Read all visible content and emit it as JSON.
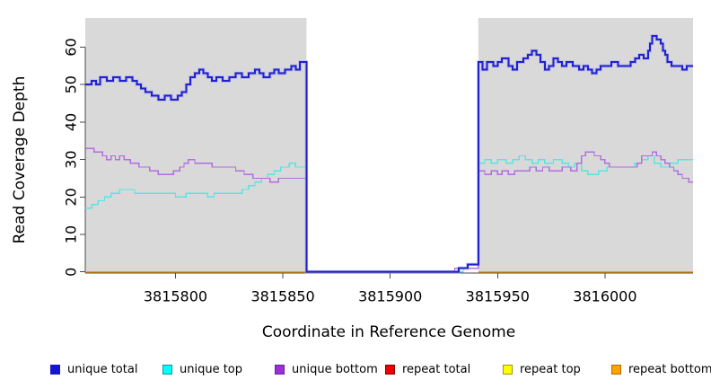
{
  "figure": {
    "title": "",
    "ylabel": "Read Coverage Depth",
    "xlabel": "Coordinate in Reference Genome"
  },
  "legend": {
    "items": [
      {
        "label": "unique total",
        "fill": "#1515ce",
        "border": "#1515ce"
      },
      {
        "label": "unique top",
        "fill": "#00ffff",
        "border": "#009c9c"
      },
      {
        "label": "unique bottom",
        "fill": "#9d2fd6",
        "border": "#6a1f93"
      },
      {
        "label": "repeat total",
        "fill": "#ee0000",
        "border": "#7e0000"
      },
      {
        "label": "repeat top",
        "fill": "#ffff00",
        "border": "#99990a"
      },
      {
        "label": "repeat bottom",
        "fill": "#ffa500",
        "border": "#b36b00"
      }
    ]
  },
  "chart_data": {
    "type": "line",
    "subtype": "step",
    "title": "",
    "xlabel": "Coordinate in Reference Genome",
    "ylabel": "Read Coverage Depth",
    "xlim": [
      3815758,
      3816041
    ],
    "ylim": [
      -0.3,
      67.8
    ],
    "xticks": [
      3815800,
      3815850,
      3815900,
      3815950,
      3816000
    ],
    "yticks": [
      0,
      10,
      20,
      30,
      40,
      50,
      60
    ],
    "grid": false,
    "legend_position": "bottom",
    "panel_bg": "#d9d9d9",
    "gap_region": {
      "start": 3815861,
      "end": 3815941,
      "color": "#ffffff"
    },
    "axis_color": "#4a4a4a",
    "series": [
      {
        "name": "repeat total",
        "key": "repeat-total",
        "color": "#e00000",
        "width": 1.3,
        "segments": [
          [
            [
              3815758,
              0
            ],
            [
              3815861,
              0
            ]
          ],
          [
            [
              3815941,
              0
            ],
            [
              3816041,
              0
            ]
          ]
        ]
      },
      {
        "name": "repeat top",
        "key": "repeat-top",
        "color": "#ffff00",
        "width": 1.3,
        "segments": [
          [
            [
              3815758,
              0
            ],
            [
              3815861,
              0
            ]
          ],
          [
            [
              3815941,
              0
            ],
            [
              3816041,
              0
            ]
          ]
        ]
      },
      {
        "name": "repeat bottom",
        "key": "repeat-bottom",
        "color": "#ff9d00",
        "width": 1.6,
        "segments": [
          [
            [
              3815758,
              0
            ],
            [
              3815861,
              0
            ]
          ],
          [
            [
              3815941,
              0
            ],
            [
              3816041,
              0
            ]
          ]
        ]
      },
      {
        "name": "unique top",
        "key": "unique-top",
        "color": "#55e6e2",
        "width": 1.4,
        "segments": [
          [
            [
              3815758,
              17
            ],
            [
              3815761,
              18
            ],
            [
              3815764,
              19
            ],
            [
              3815767,
              20
            ],
            [
              3815770,
              21
            ],
            [
              3815774,
              22
            ],
            [
              3815781,
              21
            ],
            [
              3815800,
              20
            ],
            [
              3815805,
              21
            ],
            [
              3815815,
              20
            ],
            [
              3815818,
              21
            ],
            [
              3815831,
              22
            ],
            [
              3815834,
              23
            ],
            [
              3815837,
              24
            ],
            [
              3815840,
              25
            ],
            [
              3815843,
              26
            ],
            [
              3815846,
              27
            ],
            [
              3815849,
              28
            ],
            [
              3815853,
              29
            ],
            [
              3815856,
              28
            ],
            [
              3815861,
              0
            ],
            [
              3815934,
              1
            ],
            [
              3815941,
              29
            ],
            [
              3815944,
              30
            ],
            [
              3815947,
              29
            ],
            [
              3815950,
              30
            ],
            [
              3815954,
              29
            ],
            [
              3815957,
              30
            ],
            [
              3815960,
              31
            ],
            [
              3815963,
              30
            ],
            [
              3815966,
              29
            ],
            [
              3815969,
              30
            ],
            [
              3815972,
              29
            ],
            [
              3815976,
              30
            ],
            [
              3815980,
              29
            ],
            [
              3815983,
              28
            ],
            [
              3815986,
              29
            ],
            [
              3815989,
              27
            ],
            [
              3815992,
              26
            ],
            [
              3815997,
              27
            ],
            [
              3816001,
              28
            ],
            [
              3816010,
              28
            ],
            [
              3816014,
              29
            ],
            [
              3816017,
              30
            ],
            [
              3816020,
              31
            ],
            [
              3816023,
              29
            ],
            [
              3816026,
              28
            ],
            [
              3816030,
              29
            ],
            [
              3816034,
              30
            ],
            [
              3816041,
              30
            ]
          ]
        ]
      },
      {
        "name": "unique bottom",
        "key": "unique-bottom",
        "color": "#b36ede",
        "width": 1.4,
        "segments": [
          [
            [
              3815758,
              33
            ],
            [
              3815762,
              32
            ],
            [
              3815766,
              31
            ],
            [
              3815768,
              30
            ],
            [
              3815770,
              31
            ],
            [
              3815772,
              30
            ],
            [
              3815774,
              31
            ],
            [
              3815776,
              30
            ],
            [
              3815779,
              29
            ],
            [
              3815783,
              28
            ],
            [
              3815788,
              27
            ],
            [
              3815792,
              26
            ],
            [
              3815799,
              27
            ],
            [
              3815802,
              28
            ],
            [
              3815804,
              29
            ],
            [
              3815806,
              30
            ],
            [
              3815809,
              29
            ],
            [
              3815817,
              28
            ],
            [
              3815824,
              28
            ],
            [
              3815828,
              27
            ],
            [
              3815832,
              26
            ],
            [
              3815836,
              25
            ],
            [
              3815841,
              25
            ],
            [
              3815844,
              24
            ],
            [
              3815848,
              25
            ],
            [
              3815861,
              0
            ],
            [
              3815930,
              1
            ],
            [
              3815941,
              27
            ],
            [
              3815944,
              26
            ],
            [
              3815947,
              27
            ],
            [
              3815950,
              26
            ],
            [
              3815952,
              27
            ],
            [
              3815955,
              26
            ],
            [
              3815958,
              27
            ],
            [
              3815962,
              27
            ],
            [
              3815965,
              28
            ],
            [
              3815968,
              27
            ],
            [
              3815971,
              28
            ],
            [
              3815974,
              27
            ],
            [
              3815980,
              28
            ],
            [
              3815984,
              27
            ],
            [
              3815987,
              29
            ],
            [
              3815989,
              31
            ],
            [
              3815991,
              32
            ],
            [
              3815995,
              31
            ],
            [
              3815998,
              30
            ],
            [
              3816000,
              29
            ],
            [
              3816002,
              28
            ],
            [
              3816012,
              28
            ],
            [
              3816015,
              29
            ],
            [
              3816017,
              31
            ],
            [
              3816020,
              31
            ],
            [
              3816022,
              32
            ],
            [
              3816024,
              31
            ],
            [
              3816026,
              30
            ],
            [
              3816028,
              29
            ],
            [
              3816030,
              28
            ],
            [
              3816032,
              27
            ],
            [
              3816034,
              26
            ],
            [
              3816036,
              25
            ],
            [
              3816039,
              24
            ],
            [
              3816041,
              24
            ]
          ]
        ]
      },
      {
        "name": "unique total",
        "key": "unique-total",
        "color": "#2121cd",
        "width": 2,
        "halo": "#9b9bf0",
        "segments": [
          [
            [
              3815758,
              50
            ],
            [
              3815761,
              51
            ],
            [
              3815763,
              50
            ],
            [
              3815765,
              52
            ],
            [
              3815768,
              51
            ],
            [
              3815771,
              52
            ],
            [
              3815774,
              51
            ],
            [
              3815777,
              52
            ],
            [
              3815780,
              51
            ],
            [
              3815782,
              50
            ],
            [
              3815784,
              49
            ],
            [
              3815786,
              48
            ],
            [
              3815789,
              47
            ],
            [
              3815792,
              46
            ],
            [
              3815795,
              47
            ],
            [
              3815798,
              46
            ],
            [
              3815801,
              47
            ],
            [
              3815803,
              48
            ],
            [
              3815805,
              50
            ],
            [
              3815807,
              52
            ],
            [
              3815809,
              53
            ],
            [
              3815811,
              54
            ],
            [
              3815813,
              53
            ],
            [
              3815815,
              52
            ],
            [
              3815817,
              51
            ],
            [
              3815819,
              52
            ],
            [
              3815822,
              51
            ],
            [
              3815825,
              52
            ],
            [
              3815828,
              53
            ],
            [
              3815831,
              52
            ],
            [
              3815834,
              53
            ],
            [
              3815837,
              54
            ],
            [
              3815839,
              53
            ],
            [
              3815841,
              52
            ],
            [
              3815844,
              53
            ],
            [
              3815846,
              54
            ],
            [
              3815848,
              53
            ],
            [
              3815851,
              54
            ],
            [
              3815854,
              55
            ],
            [
              3815856,
              54
            ],
            [
              3815858,
              56
            ],
            [
              3815861,
              0
            ],
            [
              3815932,
              1
            ],
            [
              3815936,
              2
            ],
            [
              3815941,
              56
            ],
            [
              3815943,
              54
            ],
            [
              3815945,
              56
            ],
            [
              3815948,
              55
            ],
            [
              3815950,
              56
            ],
            [
              3815952,
              57
            ],
            [
              3815955,
              55
            ],
            [
              3815957,
              54
            ],
            [
              3815959,
              56
            ],
            [
              3815962,
              57
            ],
            [
              3815964,
              58
            ],
            [
              3815966,
              59
            ],
            [
              3815968,
              58
            ],
            [
              3815970,
              56
            ],
            [
              3815972,
              54
            ],
            [
              3815974,
              55
            ],
            [
              3815976,
              57
            ],
            [
              3815978,
              56
            ],
            [
              3815980,
              55
            ],
            [
              3815982,
              56
            ],
            [
              3815985,
              55
            ],
            [
              3815988,
              54
            ],
            [
              3815990,
              55
            ],
            [
              3815992,
              54
            ],
            [
              3815994,
              53
            ],
            [
              3815996,
              54
            ],
            [
              3815998,
              55
            ],
            [
              3816003,
              56
            ],
            [
              3816006,
              55
            ],
            [
              3816012,
              56
            ],
            [
              3816014,
              57
            ],
            [
              3816016,
              58
            ],
            [
              3816018,
              57
            ],
            [
              3816020,
              59
            ],
            [
              3816021,
              61
            ],
            [
              3816022,
              63
            ],
            [
              3816024,
              62
            ],
            [
              3816026,
              61
            ],
            [
              3816027,
              59
            ],
            [
              3816028,
              58
            ],
            [
              3816029,
              56
            ],
            [
              3816031,
              55
            ],
            [
              3816036,
              54
            ],
            [
              3816038,
              55
            ],
            [
              3816041,
              55
            ]
          ]
        ]
      }
    ]
  }
}
